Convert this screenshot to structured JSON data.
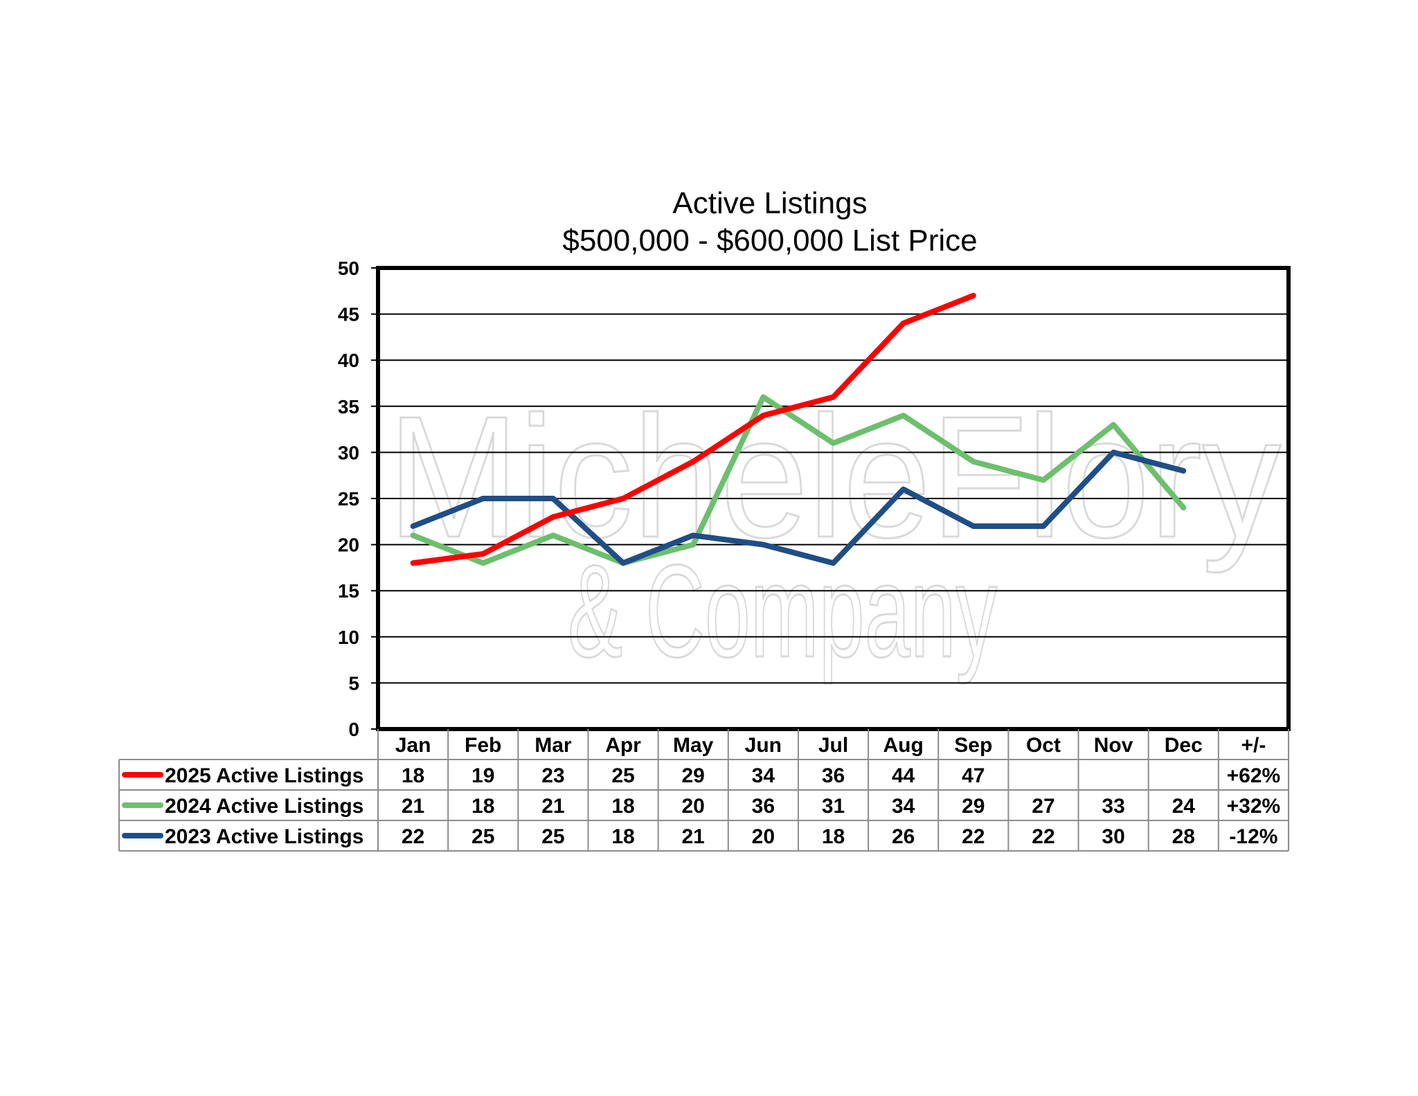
{
  "colors": {
    "s2025": "#ff0000",
    "s2024": "#6dbf6d",
    "s2023": "#1f4e86",
    "grid": "#000000",
    "table_border": "#8c8c8c"
  },
  "watermark": {
    "line1": "MicheleFlory",
    "line2": "& Company"
  },
  "chart_data": {
    "type": "line",
    "title": "Active Listings",
    "subtitle": "$500,000 - $600,000 List Price",
    "categories": [
      "Jan",
      "Feb",
      "Mar",
      "Apr",
      "May",
      "Jun",
      "Jul",
      "Aug",
      "Sep",
      "Oct",
      "Nov",
      "Dec"
    ],
    "ylim": [
      0,
      50
    ],
    "yticks": [
      "0",
      "5",
      "10",
      "15",
      "20",
      "25",
      "30",
      "35",
      "40",
      "45",
      "50"
    ],
    "grid": true,
    "legend": "table-below",
    "change_header": "+/-",
    "series": [
      {
        "name": "2025 Active Listings",
        "values": [
          18,
          19,
          23,
          25,
          29,
          34,
          36,
          44,
          47,
          null,
          null,
          null
        ],
        "change": "+62%",
        "color": "#ff0000"
      },
      {
        "name": "2024 Active Listings",
        "values": [
          21,
          18,
          21,
          18,
          20,
          36,
          31,
          34,
          29,
          27,
          33,
          24
        ],
        "change": "+32%",
        "color": "#6dbf6d"
      },
      {
        "name": "2023 Active Listings",
        "values": [
          22,
          25,
          25,
          18,
          21,
          20,
          18,
          26,
          22,
          22,
          30,
          28
        ],
        "change": "-12%",
        "color": "#1f4e86"
      }
    ]
  }
}
